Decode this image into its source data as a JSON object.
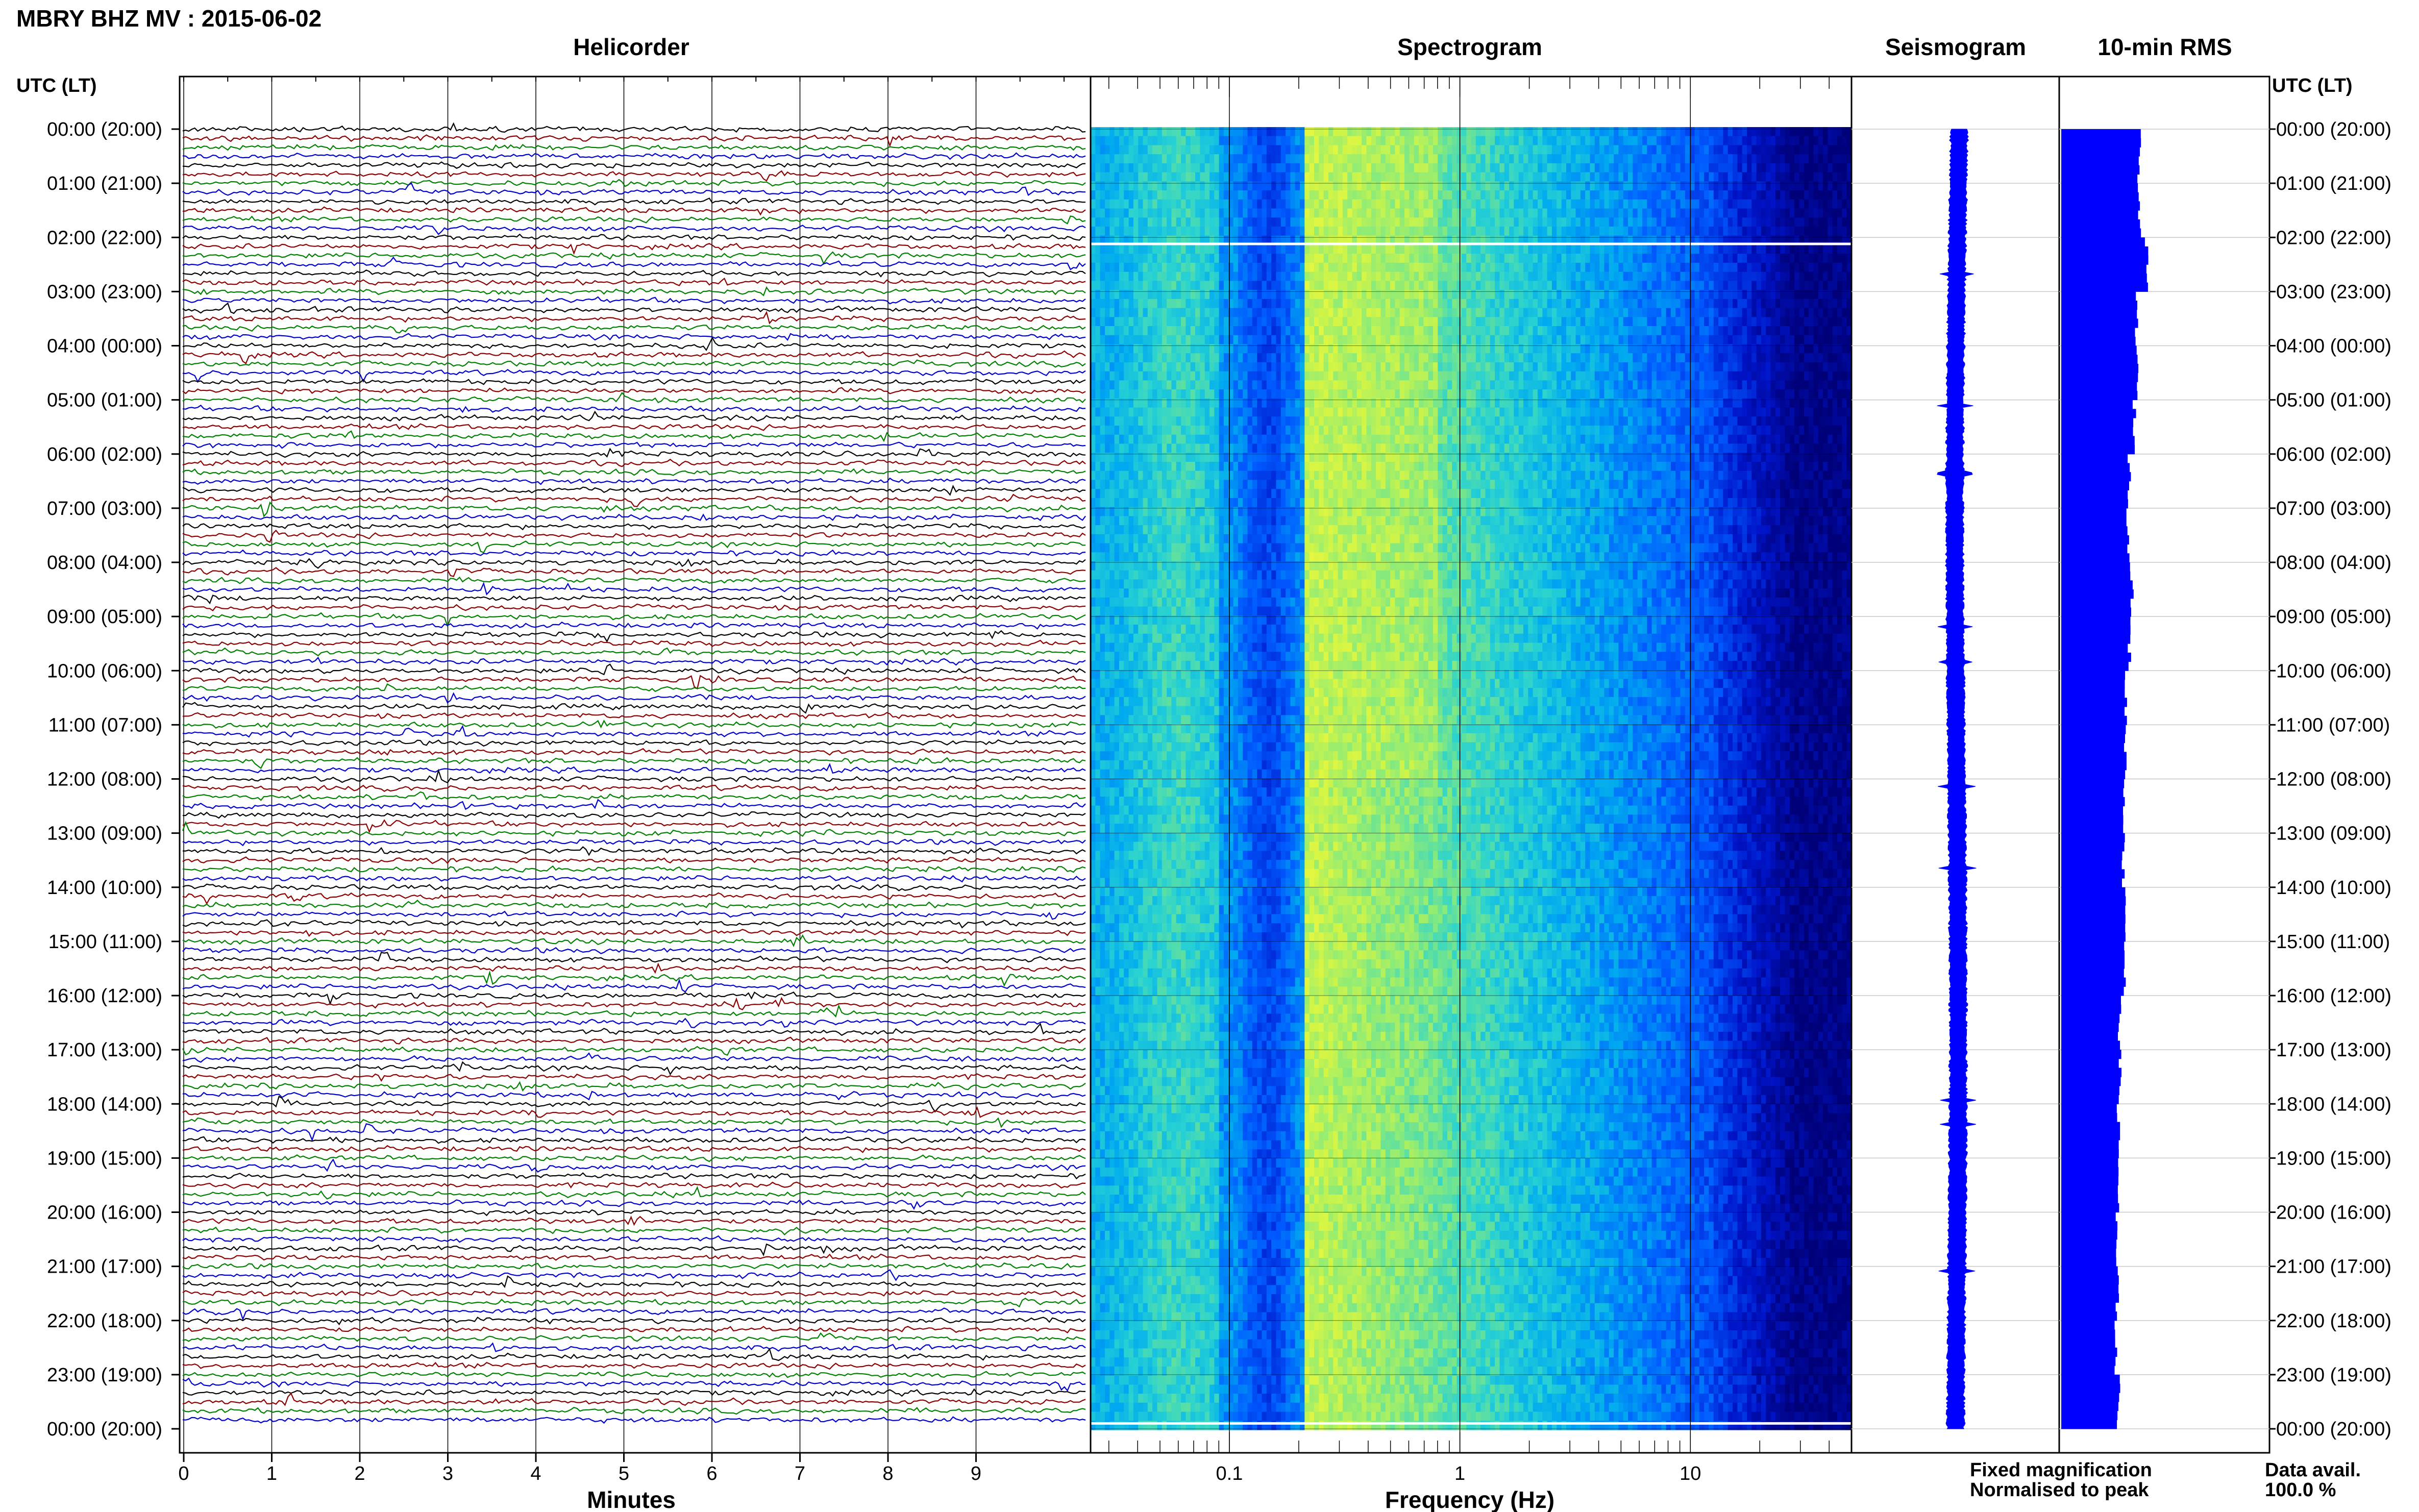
{
  "figure": {
    "title": "MBRY BHZ MV : 2015-06-02",
    "panels": {
      "helicorder": "Helicorder",
      "spectrogram": "Spectrogram",
      "seismogram": "Seismogram",
      "rms": "10-min RMS"
    },
    "time_axis_label_left": "UTC (LT)",
    "time_axis_label_right": "UTC (LT)",
    "legend": {
      "fixed": "Fixed magnification",
      "normalised": "Normalised to peak",
      "fixed_color": "#0000ff",
      "normalised_color": "#ff0000"
    },
    "data_avail": {
      "label": "Data avail.",
      "value": "100.0 %"
    },
    "colors": {
      "trace_cycle": [
        "#000000",
        "#8b0000",
        "#008000",
        "#0000cd"
      ],
      "rms_bar": "#0000ff",
      "seismogram": "#0000ff"
    }
  },
  "chart_data": [
    {
      "type": "line",
      "panel": "helicorder",
      "title": "Helicorder",
      "xlabel": "Minutes",
      "xlim": [
        0,
        10
      ],
      "x_ticks": [
        "0",
        "1",
        "2",
        "3",
        "4",
        "5",
        "6",
        "7",
        "8",
        "9"
      ],
      "x_tick_values": [
        0,
        1,
        2,
        3,
        4,
        5,
        6,
        7,
        8,
        9
      ],
      "rows_per_hour": 6,
      "row_minutes": 10,
      "hours": 24,
      "y_tick_labels": [
        "00:00 (20:00)",
        "01:00 (21:00)",
        "02:00 (22:00)",
        "03:00 (23:00)",
        "04:00 (00:00)",
        "05:00 (01:00)",
        "06:00 (02:00)",
        "07:00 (03:00)",
        "08:00 (04:00)",
        "09:00 (05:00)",
        "10:00 (06:00)",
        "11:00 (07:00)",
        "12:00 (08:00)",
        "13:00 (09:00)",
        "14:00 (10:00)",
        "15:00 (11:00)",
        "16:00 (12:00)",
        "17:00 (13:00)",
        "18:00 (14:00)",
        "19:00 (15:00)",
        "20:00 (16:00)",
        "21:00 (17:00)",
        "22:00 (18:00)",
        "23:00 (19:00)",
        "00:00 (20:00)"
      ]
    },
    {
      "type": "heatmap",
      "panel": "spectrogram",
      "title": "Spectrogram",
      "xlabel": "Frequency (Hz)",
      "xscale": "log",
      "xlim": [
        0.025,
        50
      ],
      "x_ticks": [
        "0.1",
        "1",
        "10"
      ],
      "x_tick_values": [
        0.1,
        1,
        10
      ],
      "peak_band_hz": [
        0.2,
        0.8
      ],
      "gap_rows_hours": [
        2.12,
        23.9
      ]
    },
    {
      "type": "line",
      "panel": "seismogram",
      "title": "Seismogram",
      "hours": 24
    },
    {
      "type": "bar",
      "panel": "rms",
      "title": "10-min RMS",
      "orientation": "horizontal",
      "hours": 24,
      "hourly_values": [
        0.64,
        0.64,
        0.7,
        0.62,
        0.62,
        0.6,
        0.56,
        0.55,
        0.58,
        0.56,
        0.53,
        0.53,
        0.52,
        0.51,
        0.53,
        0.52,
        0.48,
        0.48,
        0.47,
        0.47,
        0.45,
        0.46,
        0.45,
        0.47
      ]
    }
  ]
}
